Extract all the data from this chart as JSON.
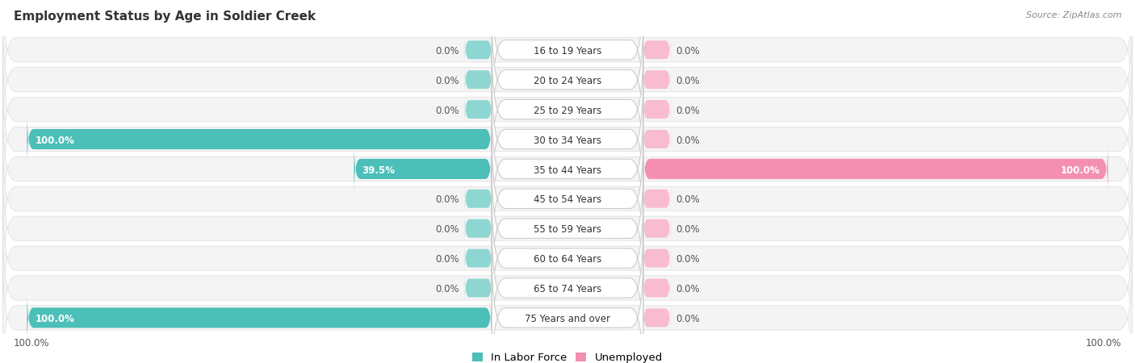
{
  "title": "Employment Status by Age in Soldier Creek",
  "source": "Source: ZipAtlas.com",
  "categories": [
    "16 to 19 Years",
    "20 to 24 Years",
    "25 to 29 Years",
    "30 to 34 Years",
    "35 to 44 Years",
    "45 to 54 Years",
    "55 to 59 Years",
    "60 to 64 Years",
    "65 to 74 Years",
    "75 Years and over"
  ],
  "in_labor_force": [
    0.0,
    0.0,
    0.0,
    100.0,
    39.5,
    0.0,
    0.0,
    0.0,
    0.0,
    100.0
  ],
  "unemployed": [
    0.0,
    0.0,
    0.0,
    0.0,
    100.0,
    0.0,
    0.0,
    0.0,
    0.0,
    0.0
  ],
  "color_labor": "#4bbfb8",
  "color_unemployed": "#f48fb1",
  "color_labor_stub": "#8dd6d2",
  "color_unemployed_stub": "#f8bbd0",
  "bg_color": "#ffffff",
  "row_bg_odd": "#f7f7f7",
  "row_bg_even": "#eeeeee",
  "x_left_label": "100.0%",
  "x_right_label": "100.0%",
  "legend_labor": "In Labor Force",
  "legend_unemployed": "Unemployed",
  "stub_size": 5.0,
  "xlim_left": -105,
  "xlim_right": 105
}
